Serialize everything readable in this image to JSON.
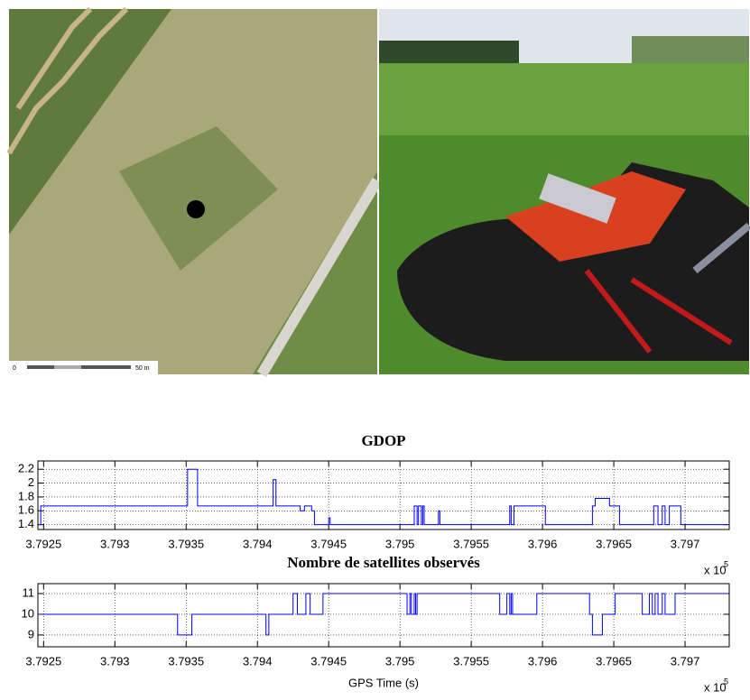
{
  "map_scale": {
    "start": "0",
    "end": "50 m"
  },
  "chart_data": [
    {
      "type": "line",
      "title": "GDOP",
      "step": "post",
      "grid": true,
      "xlim": [
        3.79246,
        3.79731
      ],
      "xticks": [
        3.7925,
        3.793,
        3.7935,
        3.794,
        3.7945,
        3.795,
        3.7955,
        3.796,
        3.7965,
        3.797
      ],
      "x_multiplier": {
        "base": "x 10",
        "exponent": "5"
      },
      "ylim": [
        1.33,
        2.32
      ],
      "yticks": [
        1.4,
        1.6,
        1.8,
        2,
        2.2
      ],
      "x": [
        3.79246,
        3.79248,
        3.79351,
        3.79358,
        3.79411,
        3.79413,
        3.7943,
        3.79433,
        3.79438,
        3.7944,
        3.7945,
        3.79451,
        3.7951,
        3.79512,
        3.79513,
        3.79515,
        3.79516,
        3.79517,
        3.79527,
        3.79528,
        3.79577,
        3.79578,
        3.7958,
        3.79602,
        3.79635,
        3.79637,
        3.79647,
        3.79654,
        3.79678,
        3.79681,
        3.79684,
        3.79686,
        3.79689,
        3.79697,
        3.79731
      ],
      "series": [
        {
          "color": "#0000ff",
          "values": [
            1.4,
            1.67,
            2.2,
            1.67,
            2.05,
            1.67,
            1.6,
            1.67,
            1.6,
            1.4,
            1.5,
            1.4,
            1.67,
            1.4,
            1.67,
            1.4,
            1.67,
            1.4,
            1.6,
            1.4,
            1.67,
            1.4,
            1.67,
            1.4,
            1.67,
            1.78,
            1.67,
            1.4,
            1.67,
            1.4,
            1.67,
            1.4,
            1.67,
            1.4,
            1.4
          ]
        }
      ]
    },
    {
      "type": "line",
      "title": "Nombre de satellites observés",
      "x_label": "GPS Time (s)",
      "step": "post",
      "grid": true,
      "xlim": [
        3.79246,
        3.79731
      ],
      "xticks": [
        3.7925,
        3.793,
        3.7935,
        3.794,
        3.7945,
        3.795,
        3.7955,
        3.796,
        3.7965,
        3.797
      ],
      "x_multiplier": {
        "base": "x 10",
        "exponent": "5"
      },
      "ylim": [
        8.43,
        11.48
      ],
      "yticks": [
        9,
        10,
        11
      ],
      "x": [
        3.79246,
        3.79344,
        3.79354,
        3.79406,
        3.79408,
        3.79425,
        3.79428,
        3.79434,
        3.79437,
        3.79446,
        3.79505,
        3.79507,
        3.79508,
        3.7951,
        3.79511,
        3.79512,
        3.7957,
        3.79575,
        3.79577,
        3.79578,
        3.79579,
        3.79596,
        3.79633,
        3.79635,
        3.79642,
        3.79651,
        3.7967,
        3.79675,
        3.79677,
        3.79679,
        3.79681,
        3.79684,
        3.79686,
        3.79693,
        3.79731
      ],
      "series": [
        {
          "color": "#0000ff",
          "values": [
            10,
            9,
            10,
            9,
            10,
            11,
            10,
            11,
            10,
            11,
            10,
            11,
            10,
            11,
            10,
            11,
            10,
            11,
            10,
            11,
            10,
            11,
            10,
            9,
            10,
            11,
            10,
            11,
            10,
            11,
            10,
            11,
            10,
            11,
            11
          ]
        }
      ]
    }
  ]
}
